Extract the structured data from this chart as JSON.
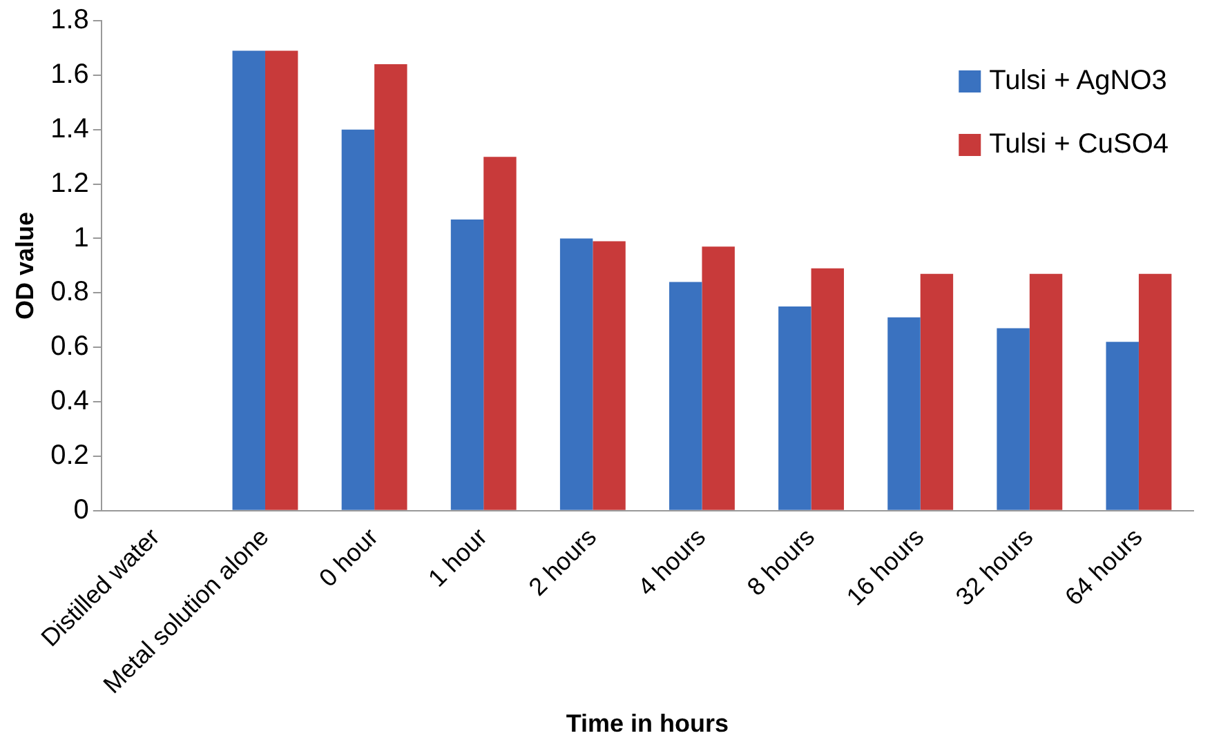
{
  "chart_data": {
    "type": "bar",
    "xlabel": "Time in hours",
    "ylabel": "OD value",
    "categories": [
      "Distilled water",
      "Metal solution alone",
      "0 hour",
      "1 hour",
      "2 hours",
      "4 hours",
      "8 hours",
      "16 hours",
      "32 hours",
      "64 hours"
    ],
    "series": [
      {
        "name": "Tulsi + AgNO3",
        "color": "#3a72c0",
        "values": [
          0,
          1.69,
          1.4,
          1.07,
          1.0,
          0.84,
          0.75,
          0.71,
          0.67,
          0.62
        ]
      },
      {
        "name": "Tulsi + CuSO4",
        "color": "#c83a3a",
        "values": [
          0,
          1.69,
          1.64,
          1.3,
          0.99,
          0.97,
          0.89,
          0.87,
          0.87,
          0.87
        ]
      }
    ],
    "ylim": [
      0,
      1.8
    ],
    "yticks": [
      0,
      0.2,
      0.4,
      0.6,
      0.8,
      1,
      1.2,
      1.4,
      1.6,
      1.8
    ],
    "grid": false,
    "legend": "top right"
  }
}
